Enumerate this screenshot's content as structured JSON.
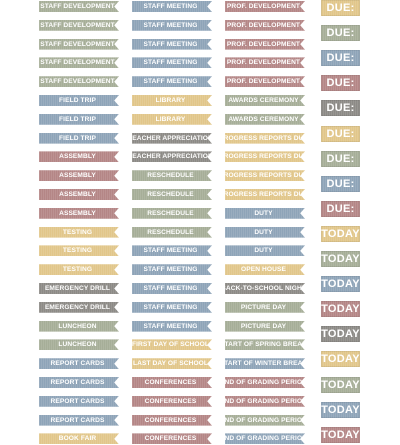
{
  "colors": {
    "sage": "#a6ae98",
    "blue": "#8ea4b8",
    "rose": "#b48686",
    "gold": "#e1c68a",
    "gray": "#8c8a86"
  },
  "columns": [
    [
      {
        "label": "STAFF DEVELOPMENT",
        "color": "sage"
      },
      {
        "label": "STAFF DEVELOPMENT",
        "color": "sage"
      },
      {
        "label": "STAFF DEVELOPMENT",
        "color": "sage"
      },
      {
        "label": "STAFF DEVELOPMENT",
        "color": "sage"
      },
      {
        "label": "STAFF DEVELOPMENT",
        "color": "sage"
      },
      {
        "label": "FIELD TRIP",
        "color": "blue"
      },
      {
        "label": "FIELD TRIP",
        "color": "blue"
      },
      {
        "label": "FIELD TRIP",
        "color": "blue"
      },
      {
        "label": "ASSEMBLY",
        "color": "rose"
      },
      {
        "label": "ASSEMBLY",
        "color": "rose"
      },
      {
        "label": "ASSEMBLY",
        "color": "rose"
      },
      {
        "label": "ASSEMBLY",
        "color": "rose"
      },
      {
        "label": "TESTING",
        "color": "gold"
      },
      {
        "label": "TESTING",
        "color": "gold"
      },
      {
        "label": "TESTING",
        "color": "gold"
      },
      {
        "label": "EMERGENCY DRILL",
        "color": "gray"
      },
      {
        "label": "EMERGENCY DRILL",
        "color": "gray"
      },
      {
        "label": "LUNCHEON",
        "color": "sage"
      },
      {
        "label": "LUNCHEON",
        "color": "sage"
      },
      {
        "label": "REPORT CARDS",
        "color": "blue"
      },
      {
        "label": "REPORT CARDS",
        "color": "blue"
      },
      {
        "label": "REPORT CARDS",
        "color": "blue"
      },
      {
        "label": "REPORT CARDS",
        "color": "blue"
      },
      {
        "label": "BOOK FAIR",
        "color": "gold"
      }
    ],
    [
      {
        "label": "STAFF MEETING",
        "color": "blue"
      },
      {
        "label": "STAFF MEETING",
        "color": "blue"
      },
      {
        "label": "STAFF MEETING",
        "color": "blue"
      },
      {
        "label": "STAFF MEETING",
        "color": "blue"
      },
      {
        "label": "STAFF MEETING",
        "color": "blue"
      },
      {
        "label": "LIBRARY",
        "color": "gold"
      },
      {
        "label": "LIBRARY",
        "color": "gold"
      },
      {
        "label": "TEACHER APPRECIATION",
        "color": "gray"
      },
      {
        "label": "TEACHER APPRECIATION",
        "color": "gray"
      },
      {
        "label": "RESCHEDULE",
        "color": "sage"
      },
      {
        "label": "RESCHEDULE",
        "color": "sage"
      },
      {
        "label": "RESCHEDULE",
        "color": "sage"
      },
      {
        "label": "RESCHEDULE",
        "color": "sage"
      },
      {
        "label": "STAFF MEETING",
        "color": "blue"
      },
      {
        "label": "STAFF MEETING",
        "color": "blue"
      },
      {
        "label": "STAFF MEETING",
        "color": "blue"
      },
      {
        "label": "STAFF MEETING",
        "color": "blue"
      },
      {
        "label": "STAFF MEETING",
        "color": "blue"
      },
      {
        "label": "FIRST DAY OF SCHOOL",
        "color": "gold"
      },
      {
        "label": "LAST DAY OF SCHOOL",
        "color": "gold"
      },
      {
        "label": "CONFERENCES",
        "color": "rose"
      },
      {
        "label": "CONFERENCES",
        "color": "rose"
      },
      {
        "label": "CONFERENCES",
        "color": "rose"
      },
      {
        "label": "CONFERENCES",
        "color": "rose"
      }
    ],
    [
      {
        "label": "PROF. DEVELOPMENT",
        "color": "rose"
      },
      {
        "label": "PROF. DEVELOPMENT",
        "color": "rose"
      },
      {
        "label": "PROF. DEVELOPMENT",
        "color": "rose"
      },
      {
        "label": "PROF. DEVELOPMENT",
        "color": "rose"
      },
      {
        "label": "PROF. DEVELOPMENT",
        "color": "rose"
      },
      {
        "label": "AWARDS CEREMONY",
        "color": "sage"
      },
      {
        "label": "AWARDS CEREMONY",
        "color": "sage"
      },
      {
        "label": "PROGRESS REPORTS DUE",
        "color": "gold"
      },
      {
        "label": "PROGRESS REPORTS DUE",
        "color": "gold"
      },
      {
        "label": "PROGRESS REPORTS DUE",
        "color": "gold"
      },
      {
        "label": "PROGRESS REPORTS DUE",
        "color": "gold"
      },
      {
        "label": "DUTY",
        "color": "blue"
      },
      {
        "label": "DUTY",
        "color": "blue"
      },
      {
        "label": "DUTY",
        "color": "blue"
      },
      {
        "label": "OPEN HOUSE",
        "color": "gold"
      },
      {
        "label": "BACK-TO-SCHOOL NIGHT",
        "color": "gray"
      },
      {
        "label": "PICTURE DAY",
        "color": "sage"
      },
      {
        "label": "PICTURE DAY",
        "color": "sage"
      },
      {
        "label": "START OF SPRING BREAK",
        "color": "sage"
      },
      {
        "label": "START OF WINTER BREAK",
        "color": "blue"
      },
      {
        "label": "END OF GRADING PERIOD",
        "color": "rose"
      },
      {
        "label": "END OF GRADING PERIOD",
        "color": "rose"
      },
      {
        "label": "END OF GRADING PERIOD",
        "color": "sage"
      },
      {
        "label": "END OF GRADING PERIOD",
        "color": "blue"
      }
    ]
  ],
  "tags": [
    {
      "label": "DUE:",
      "color": "gold"
    },
    {
      "label": "DUE:",
      "color": "sage"
    },
    {
      "label": "DUE:",
      "color": "blue"
    },
    {
      "label": "DUE:",
      "color": "rose"
    },
    {
      "label": "DUE:",
      "color": "gray"
    },
    {
      "label": "DUE:",
      "color": "gold"
    },
    {
      "label": "DUE:",
      "color": "sage"
    },
    {
      "label": "DUE:",
      "color": "blue"
    },
    {
      "label": "DUE:",
      "color": "rose"
    },
    {
      "label": "TODAY",
      "color": "gold"
    },
    {
      "label": "TODAY",
      "color": "sage"
    },
    {
      "label": "TODAY",
      "color": "blue"
    },
    {
      "label": "TODAY",
      "color": "rose"
    },
    {
      "label": "TODAY",
      "color": "gray"
    },
    {
      "label": "TODAY",
      "color": "gold"
    },
    {
      "label": "TODAY",
      "color": "sage"
    },
    {
      "label": "TODAY",
      "color": "blue"
    },
    {
      "label": "TODAY",
      "color": "rose"
    }
  ]
}
